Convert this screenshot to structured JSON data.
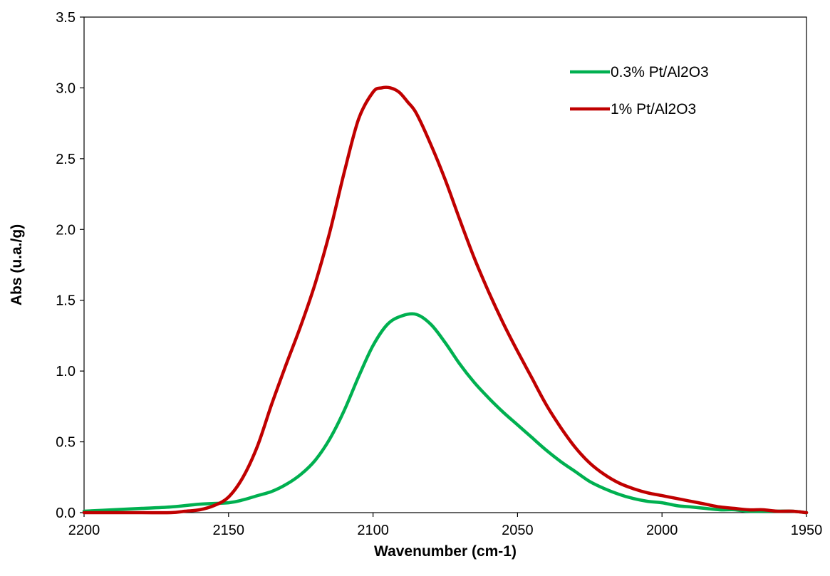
{
  "chart_data": {
    "type": "line",
    "title": "",
    "xlabel": "Wavenumber (cm-1)",
    "ylabel": "Abs (u.a./g)",
    "xlim": [
      2200,
      1950
    ],
    "ylim": [
      0,
      3.5
    ],
    "x_reversed": true,
    "x_ticks": [
      "2200",
      "2150",
      "2100",
      "2050",
      "2000",
      "1950"
    ],
    "y_ticks": [
      "0.0",
      "0.5",
      "1.0",
      "1.5",
      "2.0",
      "2.5",
      "3.0",
      "3.5"
    ],
    "grid": false,
    "legend_position": "top-right",
    "series": [
      {
        "name": "0.3% Pt/Al2O3",
        "color": "#00b050",
        "x": [
          2200,
          2190,
          2180,
          2170,
          2160,
          2150,
          2145,
          2140,
          2135,
          2130,
          2125,
          2120,
          2115,
          2110,
          2105,
          2100,
          2095,
          2090,
          2085,
          2080,
          2075,
          2070,
          2065,
          2060,
          2055,
          2050,
          2045,
          2040,
          2035,
          2030,
          2025,
          2020,
          2015,
          2010,
          2005,
          2000,
          1995,
          1990,
          1985,
          1980,
          1975,
          1970,
          1965,
          1960,
          1955,
          1950
        ],
        "values": [
          0.01,
          0.02,
          0.03,
          0.04,
          0.06,
          0.07,
          0.09,
          0.12,
          0.15,
          0.2,
          0.27,
          0.37,
          0.52,
          0.72,
          0.96,
          1.18,
          1.33,
          1.39,
          1.4,
          1.33,
          1.2,
          1.05,
          0.92,
          0.81,
          0.71,
          0.62,
          0.53,
          0.44,
          0.36,
          0.29,
          0.22,
          0.17,
          0.13,
          0.1,
          0.08,
          0.07,
          0.05,
          0.04,
          0.03,
          0.02,
          0.02,
          0.01,
          0.01,
          0.01,
          0.01,
          0.0
        ]
      },
      {
        "name": "1% Pt/Al2O3",
        "color": "#c00000",
        "x": [
          2200,
          2190,
          2180,
          2170,
          2165,
          2160,
          2155,
          2150,
          2145,
          2140,
          2135,
          2130,
          2125,
          2120,
          2115,
          2110,
          2105,
          2100,
          2097,
          2094,
          2091,
          2088,
          2085,
          2080,
          2075,
          2070,
          2065,
          2060,
          2055,
          2050,
          2045,
          2040,
          2035,
          2030,
          2025,
          2020,
          2015,
          2010,
          2005,
          2000,
          1995,
          1990,
          1985,
          1980,
          1975,
          1970,
          1965,
          1960,
          1955,
          1950
        ],
        "values": [
          0.0,
          0.0,
          0.0,
          0.0,
          0.01,
          0.02,
          0.05,
          0.11,
          0.25,
          0.47,
          0.77,
          1.05,
          1.32,
          1.62,
          1.98,
          2.4,
          2.78,
          2.97,
          3.0,
          3.0,
          2.97,
          2.9,
          2.82,
          2.6,
          2.35,
          2.07,
          1.8,
          1.56,
          1.34,
          1.14,
          0.95,
          0.76,
          0.6,
          0.46,
          0.35,
          0.27,
          0.21,
          0.17,
          0.14,
          0.12,
          0.1,
          0.08,
          0.06,
          0.04,
          0.03,
          0.02,
          0.02,
          0.01,
          0.01,
          0.0
        ]
      }
    ]
  }
}
